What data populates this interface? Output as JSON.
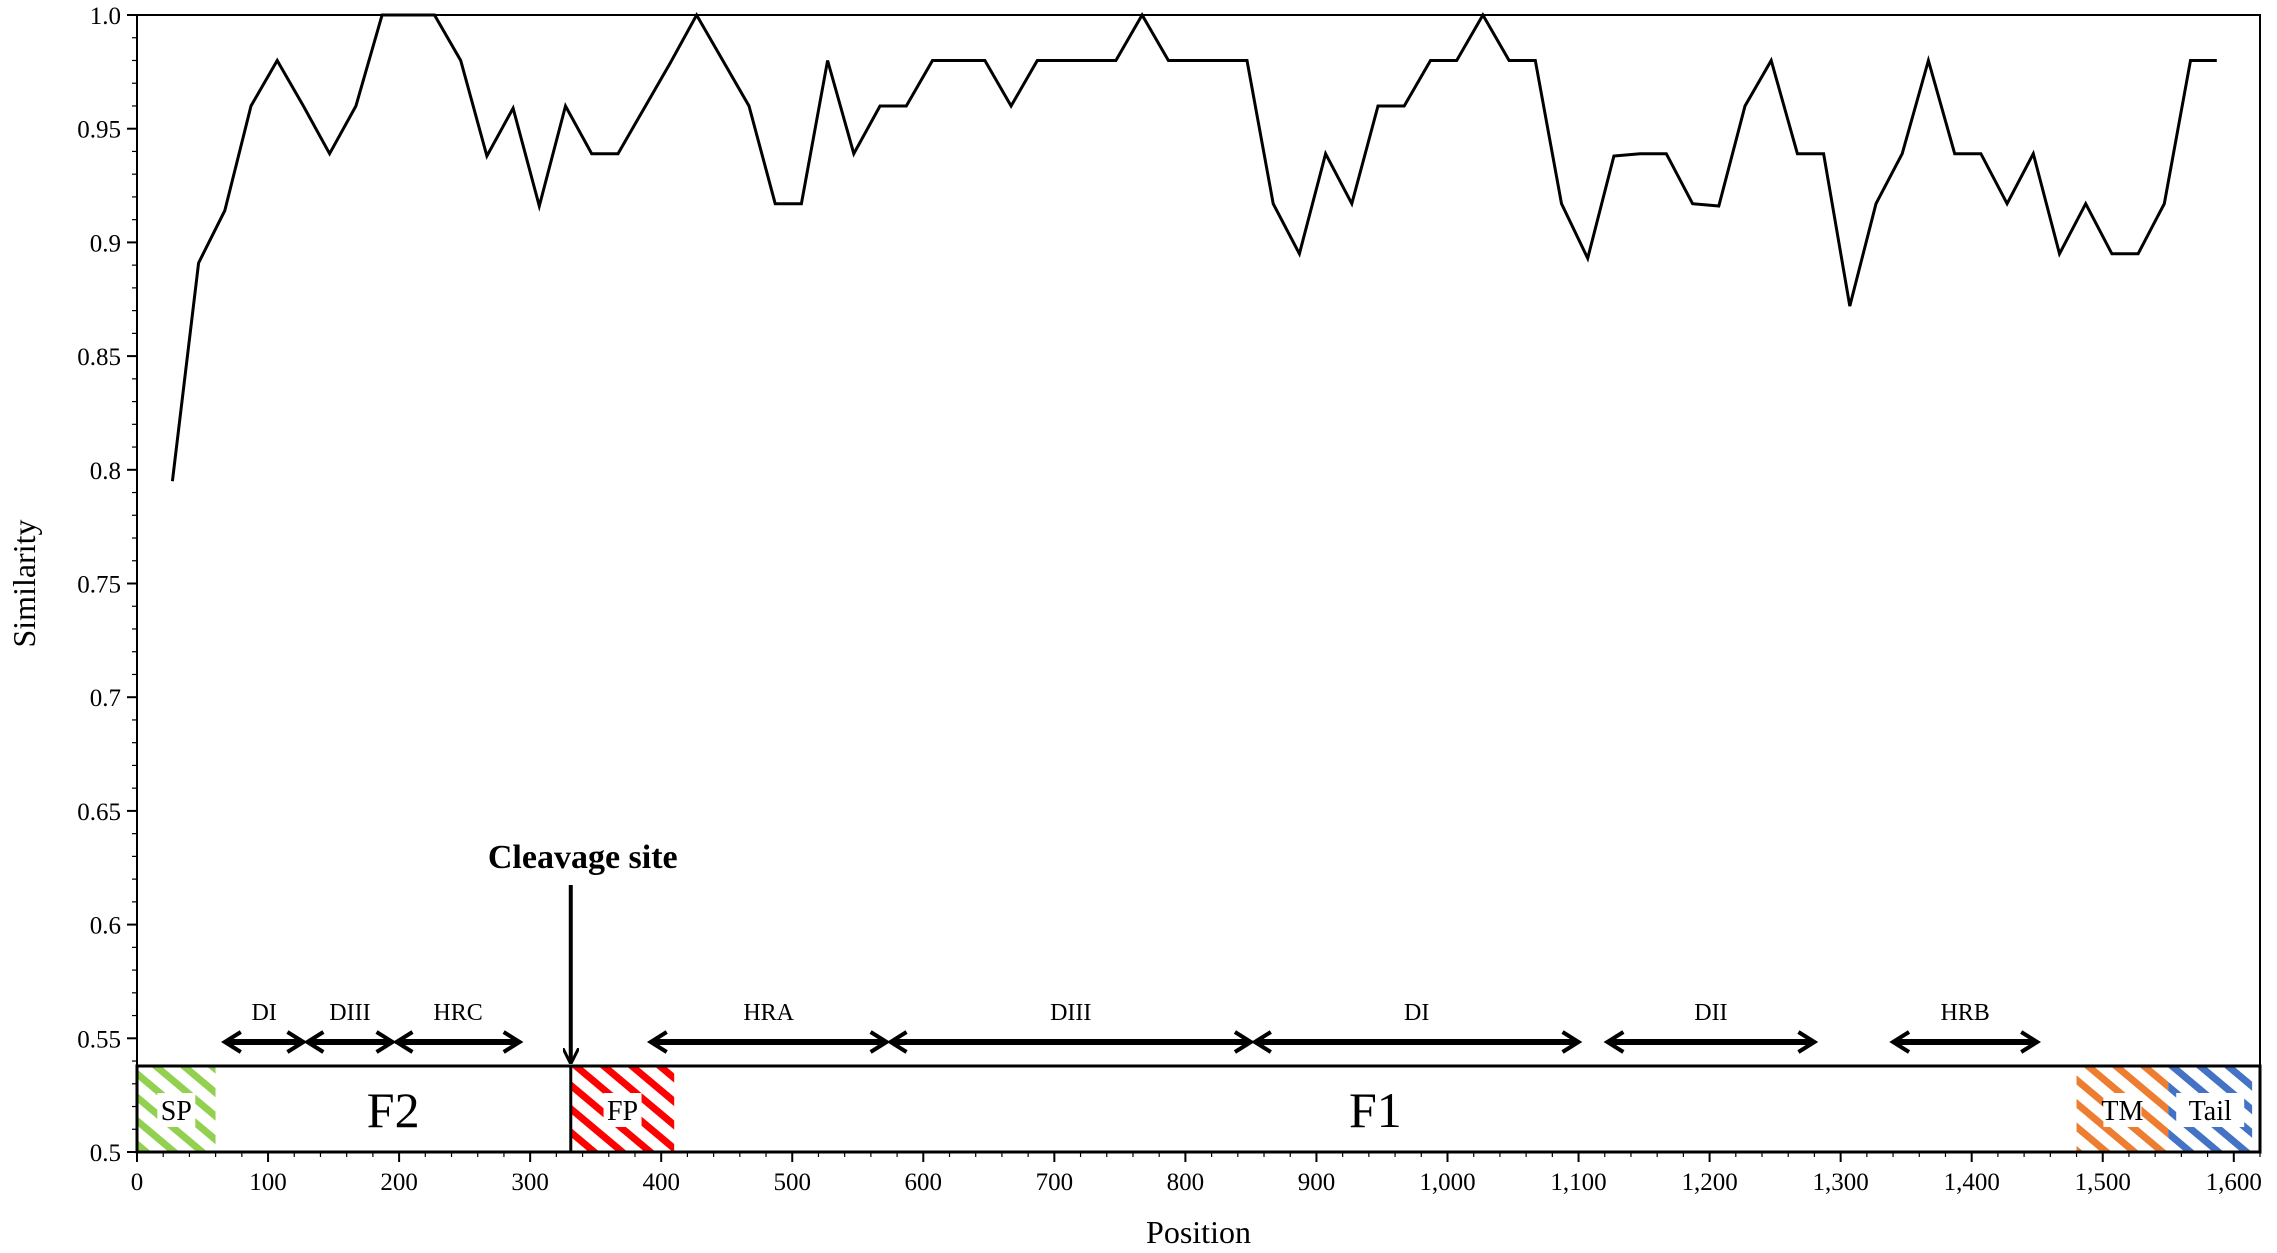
{
  "chart_data": {
    "type": "line",
    "title": "",
    "xlabel": "Position",
    "ylabel": "Similarity",
    "xlim": [
      0,
      1620
    ],
    "ylim": [
      0.5,
      1.0
    ],
    "x_ticks": [
      {
        "value": 0,
        "label": "0"
      },
      {
        "value": 100,
        "label": "100"
      },
      {
        "value": 200,
        "label": "200"
      },
      {
        "value": 300,
        "label": "300"
      },
      {
        "value": 400,
        "label": "400"
      },
      {
        "value": 500,
        "label": "500"
      },
      {
        "value": 600,
        "label": "600"
      },
      {
        "value": 700,
        "label": "700"
      },
      {
        "value": 800,
        "label": "800"
      },
      {
        "value": 900,
        "label": "900"
      },
      {
        "value": 1000,
        "label": "1,000"
      },
      {
        "value": 1100,
        "label": "1,100"
      },
      {
        "value": 1200,
        "label": "1,200"
      },
      {
        "value": 1300,
        "label": "1,300"
      },
      {
        "value": 1400,
        "label": "1,400"
      },
      {
        "value": 1500,
        "label": "1,500"
      },
      {
        "value": 1600,
        "label": "1,600"
      }
    ],
    "y_ticks": [
      {
        "value": 0.5,
        "label": "0.5"
      },
      {
        "value": 0.55,
        "label": "0.55"
      },
      {
        "value": 0.6,
        "label": "0.6"
      },
      {
        "value": 0.65,
        "label": "0.65"
      },
      {
        "value": 0.7,
        "label": "0.7"
      },
      {
        "value": 0.75,
        "label": "0.75"
      },
      {
        "value": 0.8,
        "label": "0.8"
      },
      {
        "value": 0.85,
        "label": "0.85"
      },
      {
        "value": 0.9,
        "label": "0.9"
      },
      {
        "value": 0.95,
        "label": "0.95"
      },
      {
        "value": 1.0,
        "label": "1.0"
      }
    ],
    "grid": false,
    "series": [
      {
        "color": "#000000",
        "x": [
          27,
          47,
          67,
          87,
          107,
          127,
          147,
          167,
          187,
          207,
          227,
          247,
          267,
          287,
          307,
          327,
          347,
          367,
          387,
          407,
          427,
          447,
          467,
          487,
          507,
          527,
          547,
          567,
          587,
          607,
          627,
          647,
          667,
          687,
          707,
          727,
          747,
          767,
          787,
          807,
          827,
          847,
          867,
          887,
          907,
          927,
          947,
          967,
          987,
          1007,
          1027,
          1047,
          1067,
          1087,
          1107,
          1127,
          1147,
          1167,
          1187,
          1207,
          1227,
          1247,
          1267,
          1287,
          1307,
          1327,
          1347,
          1367,
          1387,
          1407,
          1427,
          1447,
          1467,
          1487,
          1507,
          1527,
          1547,
          1567,
          1587
        ],
        "values": [
          0.795,
          0.891,
          0.914,
          0.96,
          0.98,
          0.96,
          0.939,
          0.96,
          1.0,
          1.0,
          1.0,
          0.98,
          0.938,
          0.959,
          0.916,
          0.96,
          0.939,
          0.939,
          0.959,
          0.979,
          1.0,
          0.98,
          0.96,
          0.917,
          0.917,
          0.98,
          0.939,
          0.96,
          0.96,
          0.98,
          0.98,
          0.98,
          0.96,
          0.98,
          0.98,
          0.98,
          0.98,
          1.0,
          0.98,
          0.98,
          0.98,
          0.98,
          0.917,
          0.895,
          0.939,
          0.917,
          0.96,
          0.96,
          0.98,
          0.98,
          1.0,
          0.98,
          0.98,
          0.917,
          0.893,
          0.938,
          0.939,
          0.939,
          0.917,
          0.916,
          0.96,
          0.98,
          0.939,
          0.939,
          0.872,
          0.917,
          0.939,
          0.98,
          0.939,
          0.939,
          0.917,
          0.939,
          0.895,
          0.917,
          0.895,
          0.895,
          0.917,
          0.98,
          0.98
        ]
      }
    ],
    "annotations": {
      "regions": [
        {
          "label": "SP",
          "x0": 0,
          "x1": 60,
          "pattern": "hatched",
          "color": "#92d050"
        },
        {
          "label": "F2",
          "x0": 60,
          "x1": 331,
          "pattern": "plain",
          "color": "#ffffff"
        },
        {
          "label": "FP",
          "x0": 331,
          "x1": 410,
          "pattern": "hatched",
          "color": "#ff0000"
        },
        {
          "label": "F1",
          "x0": 410,
          "x1": 1480,
          "pattern": "plain",
          "color": "#ffffff"
        },
        {
          "label": "TM",
          "x0": 1480,
          "x1": 1550,
          "pattern": "hatched",
          "color": "#ed7d31"
        },
        {
          "label": "Tail",
          "x0": 1550,
          "x1": 1614,
          "pattern": "hatched",
          "color": "#4472c4"
        }
      ],
      "domains": [
        {
          "label": "DI",
          "x0": 67,
          "x1": 127
        },
        {
          "label": "DIII",
          "x0": 130,
          "x1": 195
        },
        {
          "label": "HRC",
          "x0": 198,
          "x1": 292
        },
        {
          "label": "HRA",
          "x0": 392,
          "x1": 572
        },
        {
          "label": "DIII",
          "x0": 575,
          "x1": 850
        },
        {
          "label": "DI",
          "x0": 853,
          "x1": 1100
        },
        {
          "label": "DII",
          "x0": 1122,
          "x1": 1280
        },
        {
          "label": "HRB",
          "x0": 1340,
          "x1": 1450
        }
      ],
      "cleavage_site": {
        "label": "Cleavage site",
        "x": 331
      }
    }
  }
}
